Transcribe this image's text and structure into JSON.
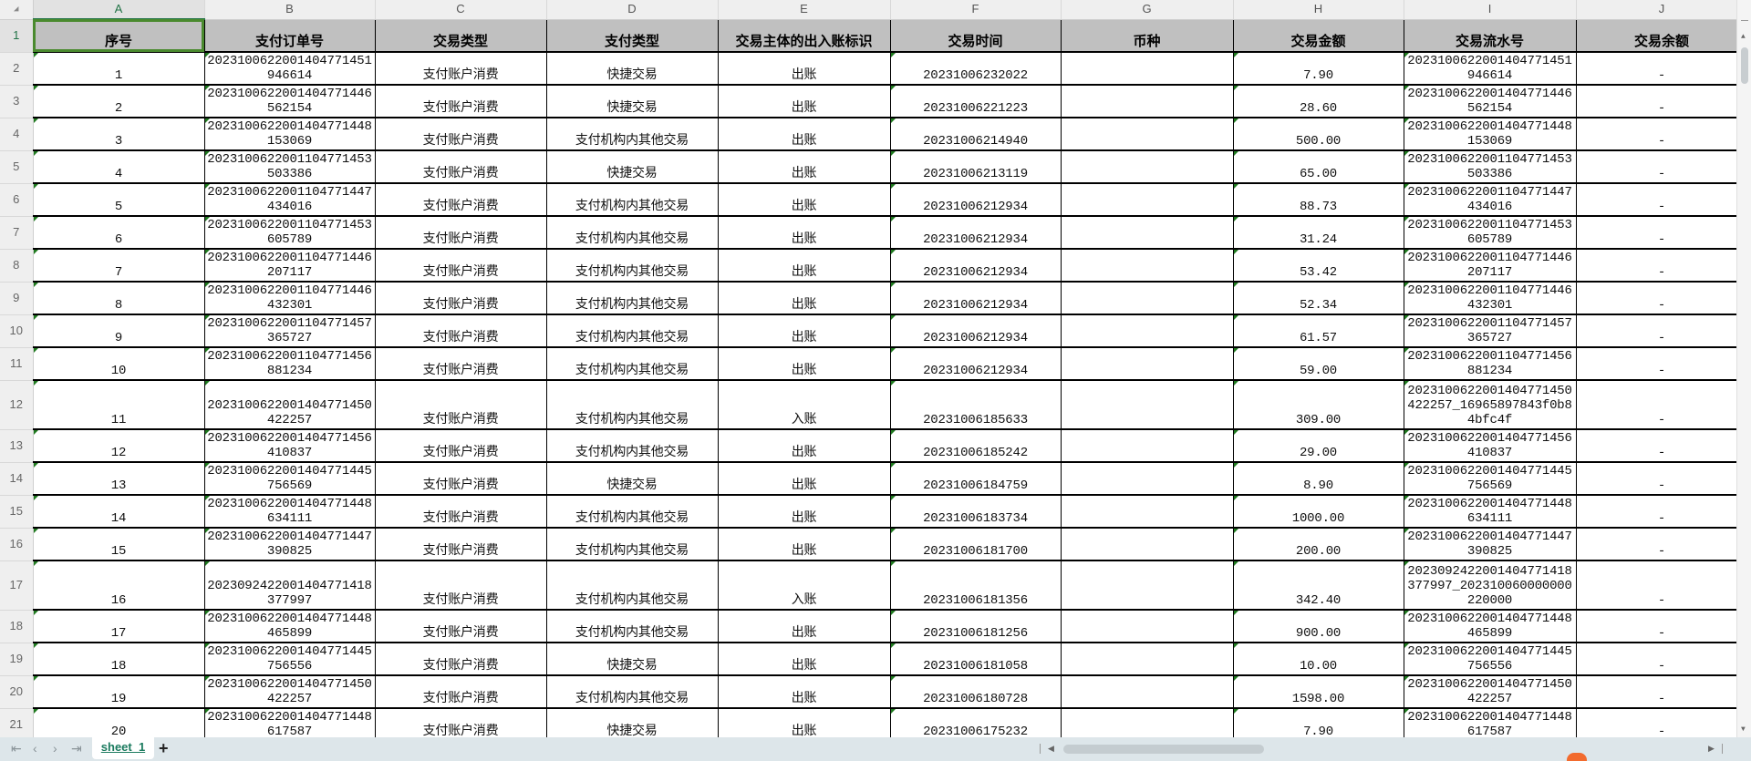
{
  "grid": {
    "corner_icon": "select-all-triangle",
    "column_letters": [
      "A",
      "B",
      "C",
      "D",
      "E",
      "F",
      "G",
      "H",
      "I",
      "J"
    ],
    "selected_cell": "A1",
    "headers": [
      "序号",
      "支付订单号",
      "交易类型",
      "支付类型",
      "交易主体的出入账标识",
      "交易时间",
      "币种",
      "交易金额",
      "交易流水号",
      "交易余额"
    ],
    "rows": [
      [
        "1",
        "20231006220014047714 51946614",
        "支付账户消费",
        "快捷交易",
        "出账",
        "20231006232022",
        "",
        "7.90",
        "20231006220014047714 51946614",
        "-"
      ],
      [
        "2",
        "20231006220014047714 46562154",
        "支付账户消费",
        "快捷交易",
        "出账",
        "20231006221223",
        "",
        "28.60",
        "20231006220014047714 46562154",
        "-"
      ],
      [
        "3",
        "20231006220014047714 48153069",
        "支付账户消费",
        "支付机构内其他交易",
        "出账",
        "20231006214940",
        "",
        "500.00",
        "20231006220014047714 48153069",
        "-"
      ],
      [
        "4",
        "20231006220011047714 53503386",
        "支付账户消费",
        "快捷交易",
        "出账",
        "20231006213119",
        "",
        "65.00",
        "20231006220011047714 53503386",
        "-"
      ],
      [
        "5",
        "20231006220011047714 47434016",
        "支付账户消费",
        "支付机构内其他交易",
        "出账",
        "20231006212934",
        "",
        "88.73",
        "20231006220011047714 47434016",
        "-"
      ],
      [
        "6",
        "20231006220011047714 53605789",
        "支付账户消费",
        "支付机构内其他交易",
        "出账",
        "20231006212934",
        "",
        "31.24",
        "20231006220011047714 53605789",
        "-"
      ],
      [
        "7",
        "20231006220011047714 46207117",
        "支付账户消费",
        "支付机构内其他交易",
        "出账",
        "20231006212934",
        "",
        "53.42",
        "20231006220011047714 46207117",
        "-"
      ],
      [
        "8",
        "20231006220011047714 46432301",
        "支付账户消费",
        "支付机构内其他交易",
        "出账",
        "20231006212934",
        "",
        "52.34",
        "20231006220011047714 46432301",
        "-"
      ],
      [
        "9",
        "20231006220011047714 57365727",
        "支付账户消费",
        "支付机构内其他交易",
        "出账",
        "20231006212934",
        "",
        "61.57",
        "20231006220011047714 57365727",
        "-"
      ],
      [
        "10",
        "20231006220011047714 56881234",
        "支付账户消费",
        "支付机构内其他交易",
        "出账",
        "20231006212934",
        "",
        "59.00",
        "20231006220011047714 56881234",
        "-"
      ],
      [
        "11",
        "20231006220014047714 50422257",
        "支付账户消费",
        "支付机构内其他交易",
        "入账",
        "20231006185633",
        "",
        "309.00",
        "20231006220014047714 50422257_16965897843f0b8 4bfc4f",
        "-"
      ],
      [
        "12",
        "20231006220014047714 56410837",
        "支付账户消费",
        "支付机构内其他交易",
        "出账",
        "20231006185242",
        "",
        "29.00",
        "20231006220014047714 56410837",
        "-"
      ],
      [
        "13",
        "20231006220014047714 45756569",
        "支付账户消费",
        "快捷交易",
        "出账",
        "20231006184759",
        "",
        "8.90",
        "20231006220014047714 45756569",
        "-"
      ],
      [
        "14",
        "20231006220014047714 48634111",
        "支付账户消费",
        "支付机构内其他交易",
        "出账",
        "20231006183734",
        "",
        "1000.00",
        "20231006220014047714 48634111",
        "-"
      ],
      [
        "15",
        "20231006220014047714 47390825",
        "支付账户消费",
        "支付机构内其他交易",
        "出账",
        "20231006181700",
        "",
        "200.00",
        "20231006220014047714 47390825",
        "-"
      ],
      [
        "16",
        "20230924220014047714 18377997",
        "支付账户消费",
        "支付机构内其他交易",
        "入账",
        "20231006181356",
        "",
        "342.40",
        "20230924220014047714 18377997_202310060000000 220000",
        "-"
      ],
      [
        "17",
        "20231006220014047714 48465899",
        "支付账户消费",
        "支付机构内其他交易",
        "出账",
        "20231006181256",
        "",
        "900.00",
        "20231006220014047714 48465899",
        "-"
      ],
      [
        "18",
        "20231006220014047714 45756556",
        "支付账户消费",
        "快捷交易",
        "出账",
        "20231006181058",
        "",
        "10.00",
        "20231006220014047714 45756556",
        "-"
      ],
      [
        "19",
        "20231006220014047714 50422257",
        "支付账户消费",
        "支付机构内其他交易",
        "出账",
        "20231006180728",
        "",
        "1598.00",
        "20231006220014047714 50422257",
        "-"
      ],
      [
        "20",
        "20231006220014047714 48617587",
        "支付账户消费",
        "快捷交易",
        "出账",
        "20231006175232",
        "",
        "7.90",
        "20231006220014047714 48617587",
        "-"
      ]
    ]
  },
  "sheet_tabs": {
    "first_icon": "⇤",
    "prev_icon": "‹",
    "next_icon": "›",
    "last_icon": "⇥",
    "active_tab": "sheet_1",
    "add_label": "+"
  },
  "colors": {
    "accent": "#217346",
    "header_fill": "#c0c0c0",
    "selection": "#4a8a2e",
    "bottom_bar": "#dde6ea"
  }
}
